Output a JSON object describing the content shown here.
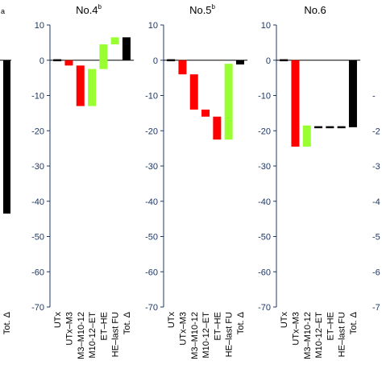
{
  "figure": {
    "y_ticks": [
      10,
      0,
      -10,
      -20,
      -30,
      -40,
      -50,
      -60,
      -70
    ],
    "edge_left_label_fragment": "a",
    "edge_right_tick_fragments": [
      "-",
      "-2",
      "-3",
      "-4",
      "-5",
      "-6",
      "-7"
    ]
  },
  "chart_data": [
    {
      "type": "bar",
      "title": "",
      "categories": [
        "Tot. Δ"
      ],
      "values": [
        -43.5
      ],
      "colors": [
        "#000000"
      ],
      "ylim": [
        -70,
        10
      ],
      "partial": true
    },
    {
      "type": "waterfall",
      "title": "No.4",
      "title_superscript": "b",
      "categories": [
        "UTx",
        "UTx–M3",
        "M3–M10-12",
        "M10-12–ET",
        "ET–HE",
        "HE–last FU",
        "Tot. Δ"
      ],
      "bars": [
        {
          "start": 0,
          "end": 0,
          "color": "#000000"
        },
        {
          "start": 0,
          "end": -1.5,
          "color": "#ff0000"
        },
        {
          "start": -1.5,
          "end": -13,
          "color": "#ff0000"
        },
        {
          "start": -13,
          "end": -2.5,
          "color": "#99ff33"
        },
        {
          "start": -2.5,
          "end": 4.5,
          "color": "#99ff33"
        },
        {
          "start": 4.5,
          "end": 6.5,
          "color": "#99ff33"
        },
        {
          "start": 0,
          "end": 6.5,
          "color": "#000000"
        }
      ],
      "ylim": [
        -70,
        10
      ]
    },
    {
      "type": "waterfall",
      "title": "No.5",
      "title_superscript": "b",
      "categories": [
        "UTx",
        "UTx–M3",
        "M3–M10-12",
        "M10-12–ET",
        "ET–HE",
        "HE–last FU",
        "Tot. Δ"
      ],
      "bars": [
        {
          "start": 0,
          "end": 0,
          "color": "#000000"
        },
        {
          "start": 0,
          "end": -4,
          "color": "#ff0000"
        },
        {
          "start": -4,
          "end": -14,
          "color": "#ff0000"
        },
        {
          "start": -14,
          "end": -16,
          "color": "#ff0000"
        },
        {
          "start": -16,
          "end": -22.5,
          "color": "#ff0000"
        },
        {
          "start": -22.5,
          "end": -1,
          "color": "#99ff33"
        },
        {
          "start": 0,
          "end": -1.2,
          "color": "#000000"
        }
      ],
      "ylim": [
        -70,
        10
      ]
    },
    {
      "type": "waterfall",
      "title": "No.6",
      "title_superscript": "",
      "categories": [
        "UTx",
        "UTx–M3",
        "M3–M10-12",
        "M10-12–ET",
        "ET–HE",
        "HE–last FU",
        "Tot. Δ"
      ],
      "bars": [
        {
          "start": 0,
          "end": 0,
          "color": "#000000"
        },
        {
          "start": 0,
          "end": -24.5,
          "color": "#ff0000"
        },
        {
          "start": -24.5,
          "end": -18.5,
          "color": "#99ff33"
        },
        {
          "start": -19,
          "end": -19,
          "color": "#000000"
        },
        {
          "start": -19,
          "end": -19,
          "color": "#000000"
        },
        {
          "start": -19,
          "end": -19,
          "color": "#000000"
        },
        {
          "start": 0,
          "end": -19,
          "color": "#000000"
        }
      ],
      "ylim": [
        -70,
        10
      ]
    }
  ]
}
